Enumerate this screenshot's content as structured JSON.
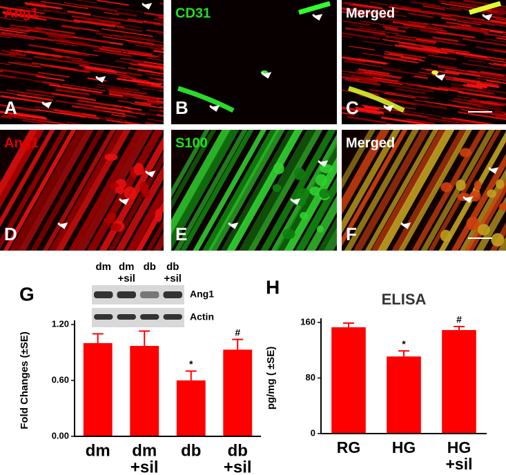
{
  "panels": [
    {
      "letter": "A",
      "stain": "Ang1",
      "stain_color": "#e00000",
      "tissue": "red"
    },
    {
      "letter": "B",
      "stain": "CD31",
      "stain_color": "#20e020",
      "tissue": "sparse-green"
    },
    {
      "letter": "C",
      "stain": "Merged",
      "stain_color": "#ffffff",
      "tissue": "red-sparse"
    },
    {
      "letter": "D",
      "stain": "Ang1",
      "stain_color": "#e00000",
      "tissue": "red-fibers"
    },
    {
      "letter": "E",
      "stain": "S100",
      "stain_color": "#20e020",
      "tissue": "green-fibers"
    },
    {
      "letter": "F",
      "stain": "Merged",
      "stain_color": "#ffffff",
      "tissue": "merged-fibers"
    }
  ],
  "chart_data": [
    {
      "type": "bar",
      "panel_letter": "G",
      "ylabel": "Fold Changes (±SE)",
      "categories": [
        [
          "dm"
        ],
        [
          "dm",
          "+sil"
        ],
        [
          "db"
        ],
        [
          "db",
          "+sil"
        ]
      ],
      "values": [
        1.0,
        0.97,
        0.6,
        0.93
      ],
      "errors": [
        0.1,
        0.16,
        0.1,
        0.11
      ],
      "color": "#ff0000",
      "ylim": [
        0,
        1.2
      ],
      "yticks": [
        {
          "value": 0,
          "label": "0.00"
        },
        {
          "value": 0.6,
          "label": "0.60"
        },
        {
          "value": 1.2,
          "label": "1.20"
        }
      ],
      "annotations": [
        {
          "text": "*",
          "category": "db"
        },
        {
          "text": "#",
          "category": "db +sil"
        }
      ],
      "blot": {
        "lanes": [
          [
            "dm"
          ],
          [
            "dm",
            "+sil"
          ],
          [
            "db"
          ],
          [
            "db",
            "+sil"
          ]
        ],
        "rows": [
          "Ang1",
          "Actin"
        ]
      }
    },
    {
      "type": "bar",
      "panel_letter": "H",
      "title": "ELISA",
      "ylabel": "pg/mg ( ±SE)",
      "categories": [
        [
          "RG"
        ],
        [
          "HG"
        ],
        [
          "HG",
          "+sil"
        ]
      ],
      "values": [
        153,
        111,
        149
      ],
      "errors": [
        6,
        8,
        5
      ],
      "color": "#ff0000",
      "ylim": [
        0,
        160
      ],
      "yticks": [
        0,
        80,
        160
      ],
      "annotations": [
        {
          "text": "*",
          "category": "HG"
        },
        {
          "text": "#",
          "category": "HG +sil"
        }
      ]
    }
  ]
}
